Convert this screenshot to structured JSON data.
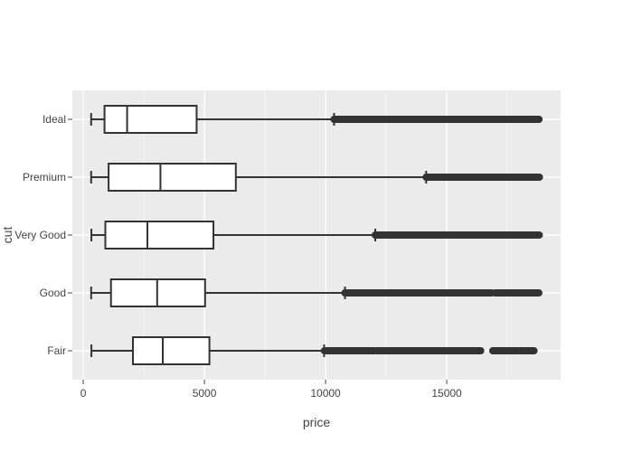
{
  "chart_data": {
    "type": "box",
    "orientation": "horizontal",
    "xlabel": "price",
    "ylabel": "cut",
    "xlim": [
      -450,
      19700
    ],
    "x_ticks": [
      0,
      5000,
      10000,
      15000
    ],
    "x_tick_labels": [
      "0",
      "5000",
      "10000",
      "15000"
    ],
    "categories": [
      "Fair",
      "Good",
      "Very Good",
      "Premium",
      "Ideal"
    ],
    "grid": true,
    "legend": "none",
    "colors": {
      "panel_bg": "#ebebeb",
      "grid_major": "#ffffff",
      "grid_minor": "#f3f3f3",
      "box_line": "#333333",
      "box_fill": "#ffffff",
      "outlier": "#333333"
    },
    "boxes": [
      {
        "category": "Fair",
        "whisker_low": 337,
        "q1": 2050,
        "median": 3282,
        "q3": 5206,
        "whisker_high": 9940,
        "outlier_ranges": [
          [
            9950,
            12000
          ],
          [
            12100,
            13300
          ],
          [
            13350,
            14650
          ],
          [
            14700,
            16400
          ],
          [
            16900,
            17900
          ],
          [
            18000,
            18600
          ]
        ]
      },
      {
        "category": "Good",
        "whisker_low": 327,
        "q1": 1145,
        "median": 3050,
        "q3": 5028,
        "whisker_high": 10800,
        "outlier_ranges": [
          [
            10800,
            16850
          ],
          [
            17000,
            18000
          ],
          [
            18050,
            18800
          ]
        ]
      },
      {
        "category": "Very Good",
        "whisker_low": 336,
        "q1": 912,
        "median": 2648,
        "q3": 5372,
        "whisker_high": 12050,
        "outlier_ranges": [
          [
            12050,
            18818
          ]
        ]
      },
      {
        "category": "Premium",
        "whisker_low": 326,
        "q1": 1046,
        "median": 3185,
        "q3": 6296,
        "whisker_high": 14150,
        "outlier_ranges": [
          [
            14150,
            18823
          ]
        ]
      },
      {
        "category": "Ideal",
        "whisker_low": 326,
        "q1": 878,
        "median": 1810,
        "q3": 4678,
        "whisker_high": 10350,
        "outlier_ranges": [
          [
            10350,
            18806
          ]
        ]
      }
    ]
  }
}
